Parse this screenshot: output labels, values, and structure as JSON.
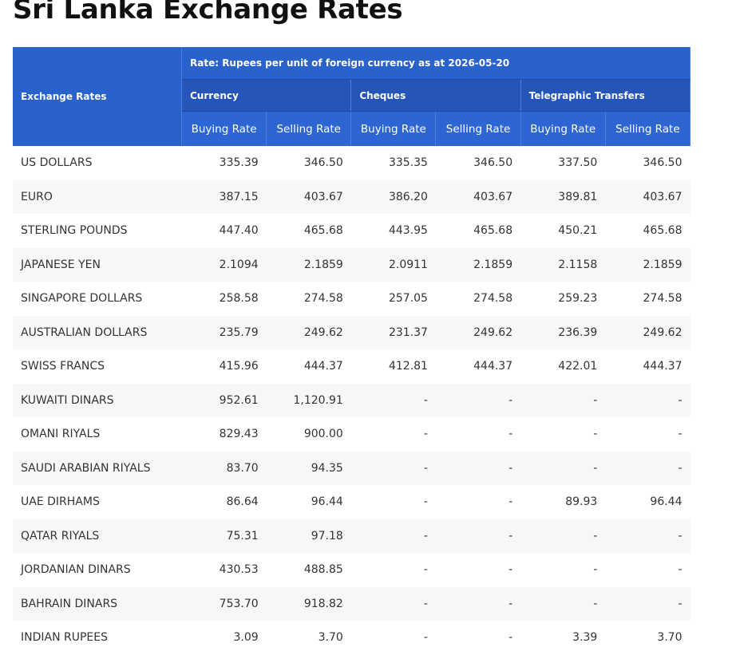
{
  "title": "Sri Lanka Exchange Rates",
  "table": {
    "corner": "Exchange Rates",
    "note": "Rate: Rupees per unit of foreign currency as at 2026-05-20",
    "groups": [
      "Currency",
      "Cheques",
      "Telegraphic Transfers"
    ],
    "subheaders": [
      "Buying Rate",
      "Selling Rate",
      "Buying Rate",
      "Selling Rate",
      "Buying Rate",
      "Selling Rate"
    ],
    "rows": [
      [
        "US DOLLARS",
        "335.39",
        "346.50",
        "335.35",
        "346.50",
        "337.50",
        "346.50"
      ],
      [
        "EURO",
        "387.15",
        "403.67",
        "386.20",
        "403.67",
        "389.81",
        "403.67"
      ],
      [
        "STERLING POUNDS",
        "447.40",
        "465.68",
        "443.95",
        "465.68",
        "450.21",
        "465.68"
      ],
      [
        "JAPANESE YEN",
        "2.1094",
        "2.1859",
        "2.0911",
        "2.1859",
        "2.1158",
        "2.1859"
      ],
      [
        "SINGAPORE DOLLARS",
        "258.58",
        "274.58",
        "257.05",
        "274.58",
        "259.23",
        "274.58"
      ],
      [
        "AUSTRALIAN DOLLARS",
        "235.79",
        "249.62",
        "231.37",
        "249.62",
        "236.39",
        "249.62"
      ],
      [
        "SWISS FRANCS",
        "415.96",
        "444.37",
        "412.81",
        "444.37",
        "422.01",
        "444.37"
      ],
      [
        "KUWAITI DINARS",
        "952.61",
        "1,120.91",
        "-",
        "-",
        "-",
        "-"
      ],
      [
        "OMANI RIYALS",
        "829.43",
        "900.00",
        "-",
        "-",
        "-",
        "-"
      ],
      [
        "SAUDI ARABIAN RIYALS",
        "83.70",
        "94.35",
        "-",
        "-",
        "-",
        "-"
      ],
      [
        "UAE DIRHAMS",
        "86.64",
        "96.44",
        "-",
        "-",
        "89.93",
        "96.44"
      ],
      [
        "QATAR RIYALS",
        "75.31",
        "97.18",
        "-",
        "-",
        "-",
        "-"
      ],
      [
        "JORDANIAN DINARS",
        "430.53",
        "488.85",
        "-",
        "-",
        "-",
        "-"
      ],
      [
        "BAHRAIN DINARS",
        "753.70",
        "918.82",
        "-",
        "-",
        "-",
        "-"
      ],
      [
        "INDIAN RUPEES",
        "3.09",
        "3.70",
        "-",
        "-",
        "3.39",
        "3.70"
      ]
    ]
  }
}
